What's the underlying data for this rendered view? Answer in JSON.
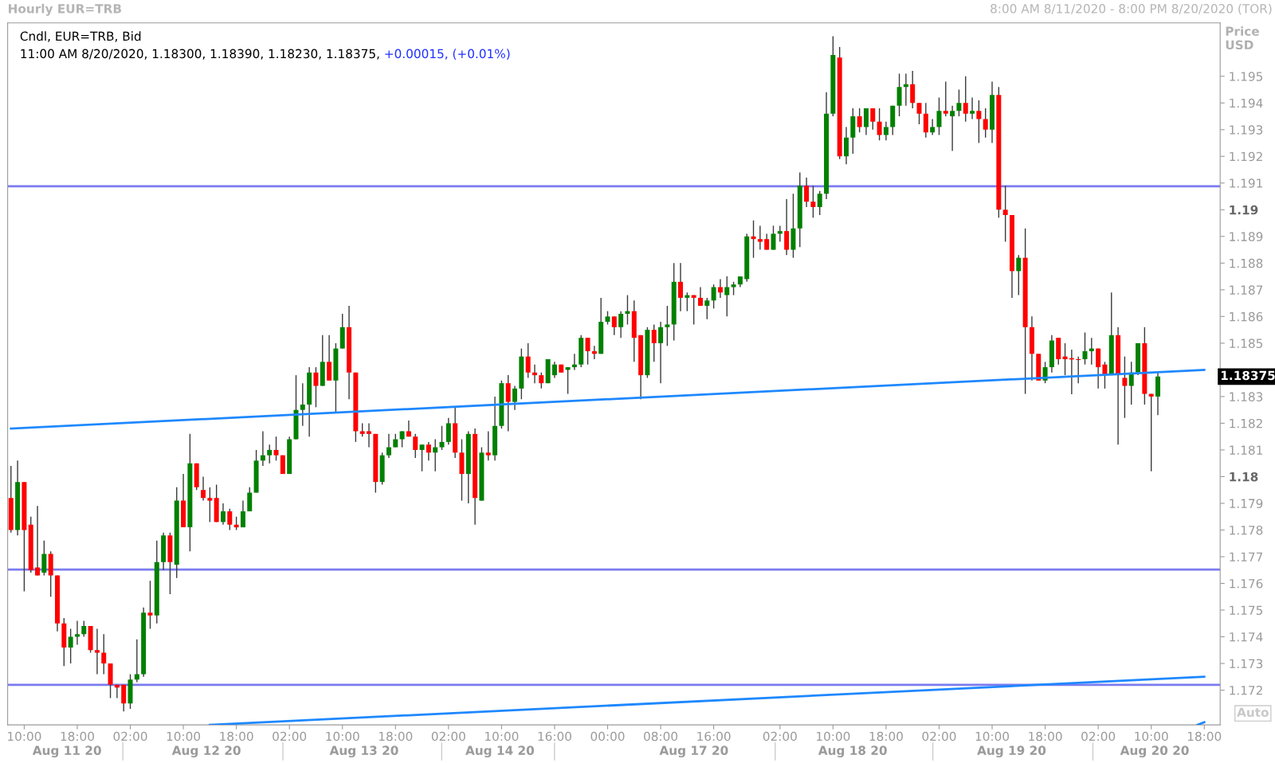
{
  "chart_data": {
    "type": "candlestick",
    "title": "Hourly EUR=TRB",
    "subtitle": "8:00 AM 8/11/2020 - 8:00 PM 8/20/2020 (TOR)",
    "ylabel": "Price\nUSD",
    "annotations": [
      "Cndl, EUR=TRB, Bid",
      "11:00 AM 8/20/2020, 1.18300, 1.18390, 1.18230, 1.18375,",
      "+0.00015, (+0.01%)",
      "Auto",
      "1.18375",
      "Aug 11 20",
      "Aug 12 20",
      "Aug 13 20",
      "Aug 14 20",
      "Aug 17 20",
      "Aug 18 20",
      "Aug 19 20",
      "Aug 20 20"
    ],
    "categories": [
      null,
      null,
      "10:00",
      null,
      null,
      null,
      null,
      null,
      null,
      null,
      "18:00",
      null,
      null,
      null,
      null,
      null,
      null,
      null,
      "02:00",
      null,
      null,
      null,
      null,
      null,
      null,
      null,
      "10:00",
      null,
      null,
      null,
      null,
      null,
      null,
      null,
      "18:00",
      null,
      null,
      null,
      null,
      null,
      null,
      null,
      "02:00",
      null,
      null,
      null,
      null,
      null,
      null,
      null,
      "10:00",
      null,
      null,
      null,
      null,
      null,
      null,
      null,
      "18:00",
      null,
      null,
      null,
      null,
      null,
      null,
      null,
      "02:00",
      null,
      null,
      null,
      null,
      null,
      null,
      null,
      "10:00",
      null,
      null,
      null,
      null,
      null,
      null,
      null,
      "16:00",
      null,
      null,
      null,
      null,
      null,
      null,
      null,
      "00:00",
      null,
      null,
      null,
      null,
      null,
      null,
      null,
      "08:00",
      null,
      null,
      null,
      null,
      null,
      null,
      null,
      "16:00",
      null,
      null,
      null,
      null,
      null,
      null,
      null,
      null,
      null,
      "02:00",
      null,
      null,
      null,
      null,
      null,
      null,
      null,
      "10:00",
      null,
      null,
      null,
      null,
      null,
      null,
      null,
      "18:00",
      null,
      null,
      null,
      null,
      null,
      null,
      null,
      "02:00",
      null,
      null,
      null,
      null,
      null,
      null,
      null,
      "10:00",
      null,
      null,
      null,
      null,
      null,
      null,
      null,
      "18:00",
      null,
      null,
      null,
      null,
      null,
      null,
      null,
      "02:00",
      null,
      null,
      null,
      null,
      null,
      null,
      null,
      "10:00",
      null,
      null,
      null,
      null,
      null,
      null,
      null,
      "18:00"
    ],
    "ohlc": [
      [
        1.1792,
        1.1804,
        1.1779,
        1.178
      ],
      [
        1.178,
        1.1806,
        1.1778,
        1.1798
      ],
      [
        1.1798,
        1.1798,
        1.1757,
        1.178
      ],
      [
        1.1782,
        1.1785,
        1.1764,
        1.1765
      ],
      [
        1.1766,
        1.1789,
        1.1763,
        1.1763
      ],
      [
        1.1764,
        1.1776,
        1.1763,
        1.1771
      ],
      [
        1.1771,
        1.1772,
        1.1755,
        1.1763
      ],
      [
        1.1763,
        1.1763,
        1.1742,
        1.1745
      ],
      [
        1.1745,
        1.1747,
        1.1729,
        1.1736
      ],
      [
        1.1736,
        1.1743,
        1.173,
        1.174
      ],
      [
        1.174,
        1.1746,
        1.1737,
        1.1741
      ],
      [
        1.1741,
        1.1746,
        1.174,
        1.1744
      ],
      [
        1.1744,
        1.1744,
        1.1734,
        1.1735
      ],
      [
        1.1735,
        1.1743,
        1.1726,
        1.1734
      ],
      [
        1.1734,
        1.1741,
        1.1726,
        1.173
      ],
      [
        1.173,
        1.173,
        1.1717,
        1.1722
      ],
      [
        1.1722,
        1.1722,
        1.1717,
        1.1721
      ],
      [
        1.1722,
        1.1722,
        1.1712,
        1.1715
      ],
      [
        1.1715,
        1.1726,
        1.1713,
        1.1724
      ],
      [
        1.1724,
        1.1739,
        1.1723,
        1.1726
      ],
      [
        1.1726,
        1.1751,
        1.1725,
        1.1749
      ],
      [
        1.1749,
        1.1761,
        1.1743,
        1.1748
      ],
      [
        1.1748,
        1.1776,
        1.1745,
        1.1768
      ],
      [
        1.1768,
        1.1779,
        1.1765,
        1.1778
      ],
      [
        1.1778,
        1.1779,
        1.1756,
        1.1768
      ],
      [
        1.1767,
        1.1796,
        1.1762,
        1.1791
      ],
      [
        1.1791,
        1.1801,
        1.1781,
        1.1781
      ],
      [
        1.1781,
        1.1816,
        1.1772,
        1.1805
      ],
      [
        1.1805,
        1.1805,
        1.1795,
        1.1796
      ],
      [
        1.1795,
        1.18,
        1.1791,
        1.1792
      ],
      [
        1.1792,
        1.1796,
        1.1783,
        1.1791
      ],
      [
        1.1792,
        1.1797,
        1.1783,
        1.1783
      ],
      [
        1.1783,
        1.179,
        1.1782,
        1.1787
      ],
      [
        1.1787,
        1.1788,
        1.178,
        1.1782
      ],
      [
        1.1782,
        1.1785,
        1.178,
        1.1781
      ],
      [
        1.1781,
        1.1791,
        1.1781,
        1.1787
      ],
      [
        1.1787,
        1.1796,
        1.1787,
        1.1794
      ],
      [
        1.1794,
        1.181,
        1.1794,
        1.1806
      ],
      [
        1.1806,
        1.1817,
        1.1804,
        1.1808
      ],
      [
        1.1808,
        1.1812,
        1.1805,
        1.181
      ],
      [
        1.181,
        1.1815,
        1.1806,
        1.1808
      ],
      [
        1.1808,
        1.1808,
        1.1801,
        1.1801
      ],
      [
        1.1801,
        1.1815,
        1.1801,
        1.1814
      ],
      [
        1.1814,
        1.1838,
        1.1814,
        1.1825
      ],
      [
        1.1825,
        1.1835,
        1.1819,
        1.1827
      ],
      [
        1.1827,
        1.1841,
        1.1815,
        1.1839
      ],
      [
        1.1839,
        1.1841,
        1.1826,
        1.1834
      ],
      [
        1.1834,
        1.1853,
        1.1834,
        1.1843
      ],
      [
        1.1843,
        1.1853,
        1.1836,
        1.1836
      ],
      [
        1.1836,
        1.185,
        1.1824,
        1.1848
      ],
      [
        1.1848,
        1.1861,
        1.1848,
        1.1856
      ],
      [
        1.1856,
        1.1864,
        1.1829,
        1.1839
      ],
      [
        1.1839,
        1.1839,
        1.1813,
        1.1817
      ],
      [
        1.1817,
        1.182,
        1.1815,
        1.1816
      ],
      [
        1.1817,
        1.182,
        1.1811,
        1.1816
      ],
      [
        1.1816,
        1.1816,
        1.1794,
        1.1798
      ],
      [
        1.1798,
        1.1809,
        1.1797,
        1.1808
      ],
      [
        1.1808,
        1.1816,
        1.1807,
        1.1811
      ],
      [
        1.1811,
        1.1816,
        1.1811,
        1.1814
      ],
      [
        1.1814,
        1.1817,
        1.1811,
        1.1817
      ],
      [
        1.1817,
        1.1821,
        1.1815,
        1.1815
      ],
      [
        1.1815,
        1.1816,
        1.1807,
        1.181
      ],
      [
        1.181,
        1.1812,
        1.1802,
        1.1812
      ],
      [
        1.1812,
        1.1813,
        1.1806,
        1.1809
      ],
      [
        1.1809,
        1.1814,
        1.1802,
        1.1811
      ],
      [
        1.1811,
        1.1819,
        1.181,
        1.1813
      ],
      [
        1.1813,
        1.1822,
        1.1812,
        1.182
      ],
      [
        1.182,
        1.1826,
        1.1807,
        1.1809
      ],
      [
        1.1809,
        1.1814,
        1.1791,
        1.1801
      ],
      [
        1.1801,
        1.1817,
        1.179,
        1.1816
      ],
      [
        1.1816,
        1.1818,
        1.1782,
        1.1792
      ],
      [
        1.1791,
        1.1811,
        1.1791,
        1.1809
      ],
      [
        1.1809,
        1.1817,
        1.1806,
        1.1808
      ],
      [
        1.1808,
        1.183,
        1.1806,
        1.1819
      ],
      [
        1.1819,
        1.1836,
        1.1818,
        1.1835
      ],
      [
        1.1835,
        1.1838,
        1.1817,
        1.1828
      ],
      [
        1.1828,
        1.1834,
        1.1825,
        1.1833
      ],
      [
        1.1833,
        1.1848,
        1.1829,
        1.1845
      ],
      [
        1.1845,
        1.185,
        1.1837,
        1.1839
      ],
      [
        1.1839,
        1.1842,
        1.1835,
        1.1838
      ],
      [
        1.1838,
        1.1839,
        1.1833,
        1.1835
      ],
      [
        1.1835,
        1.1844,
        1.1835,
        1.1844
      ],
      [
        1.1838,
        1.1843,
        1.1837,
        1.1842
      ],
      [
        1.1842,
        1.1842,
        1.1839,
        1.1839
      ],
      [
        1.184,
        1.1841,
        1.1831,
        1.1841
      ],
      [
        1.1841,
        1.1846,
        1.184,
        1.1842
      ],
      [
        1.1842,
        1.1853,
        1.1841,
        1.1852
      ],
      [
        1.1852,
        1.1852,
        1.1842,
        1.1847
      ],
      [
        1.1847,
        1.1849,
        1.1844,
        1.1846
      ],
      [
        1.1846,
        1.1867,
        1.1846,
        1.1858
      ],
      [
        1.1858,
        1.1862,
        1.1857,
        1.186
      ],
      [
        1.186,
        1.186,
        1.1853,
        1.1856
      ],
      [
        1.1856,
        1.1862,
        1.1852,
        1.1861
      ],
      [
        1.1861,
        1.1868,
        1.1857,
        1.1862
      ],
      [
        1.1862,
        1.1866,
        1.1843,
        1.1852
      ],
      [
        1.1853,
        1.1853,
        1.1829,
        1.1838
      ],
      [
        1.1838,
        1.1856,
        1.1837,
        1.1855
      ],
      [
        1.1855,
        1.1857,
        1.1843,
        1.185
      ],
      [
        1.185,
        1.1858,
        1.1835,
        1.1856
      ],
      [
        1.1856,
        1.1864,
        1.1849,
        1.1857
      ],
      [
        1.1857,
        1.188,
        1.1851,
        1.1873
      ],
      [
        1.1873,
        1.188,
        1.1862,
        1.1867
      ],
      [
        1.1867,
        1.1869,
        1.1862,
        1.1868
      ],
      [
        1.1868,
        1.1868,
        1.1857,
        1.1867
      ],
      [
        1.1867,
        1.1871,
        1.1864,
        1.1864
      ],
      [
        1.1864,
        1.1867,
        1.1859,
        1.1866
      ],
      [
        1.1866,
        1.1872,
        1.1863,
        1.1871
      ],
      [
        1.1871,
        1.1874,
        1.1867,
        1.1869
      ],
      [
        1.1868,
        1.1875,
        1.186,
        1.1871
      ],
      [
        1.1871,
        1.1873,
        1.1868,
        1.1872
      ],
      [
        1.1872,
        1.1875,
        1.1871,
        1.1875
      ],
      [
        1.1874,
        1.1891,
        1.1873,
        1.189
      ],
      [
        1.189,
        1.1896,
        1.1882,
        1.1889
      ],
      [
        1.1889,
        1.1894,
        1.1885,
        1.1888
      ],
      [
        1.1889,
        1.1891,
        1.1885,
        1.1885
      ],
      [
        1.1885,
        1.1894,
        1.1885,
        1.1891
      ],
      [
        1.1891,
        1.1894,
        1.1888,
        1.1892
      ],
      [
        1.1892,
        1.1904,
        1.1883,
        1.1885
      ],
      [
        1.1885,
        1.1906,
        1.1882,
        1.1893
      ],
      [
        1.1893,
        1.1914,
        1.1886,
        1.1909
      ],
      [
        1.1909,
        1.1912,
        1.1901,
        1.1903
      ],
      [
        1.1903,
        1.1909,
        1.1897,
        1.1901
      ],
      [
        1.1901,
        1.1907,
        1.1898,
        1.1906
      ],
      [
        1.1906,
        1.1944,
        1.1904,
        1.1936
      ],
      [
        1.1936,
        1.1965,
        1.1935,
        1.1958
      ],
      [
        1.1957,
        1.1961,
        1.1919,
        1.192
      ],
      [
        1.192,
        1.1931,
        1.1917,
        1.1927
      ],
      [
        1.1927,
        1.1938,
        1.1921,
        1.1935
      ],
      [
        1.1935,
        1.1938,
        1.1929,
        1.1931
      ],
      [
        1.1931,
        1.1938,
        1.1928,
        1.1938
      ],
      [
        1.1938,
        1.1938,
        1.193,
        1.1933
      ],
      [
        1.1933,
        1.1938,
        1.1926,
        1.1928
      ],
      [
        1.1928,
        1.1933,
        1.1926,
        1.1931
      ],
      [
        1.1931,
        1.1939,
        1.1928,
        1.1939
      ],
      [
        1.1939,
        1.1951,
        1.1935,
        1.1946
      ],
      [
        1.1946,
        1.1951,
        1.1939,
        1.1947
      ],
      [
        1.1947,
        1.1952,
        1.1938,
        1.194
      ],
      [
        1.194,
        1.194,
        1.1932,
        1.1936
      ],
      [
        1.1936,
        1.194,
        1.1927,
        1.1929
      ],
      [
        1.1929,
        1.1934,
        1.1928,
        1.1931
      ],
      [
        1.1931,
        1.1942,
        1.1928,
        1.1937
      ],
      [
        1.1937,
        1.1948,
        1.1935,
        1.1936
      ],
      [
        1.1935,
        1.1939,
        1.1922,
        1.1937
      ],
      [
        1.1937,
        1.1945,
        1.1935,
        1.194
      ],
      [
        1.194,
        1.195,
        1.1933,
        1.1936
      ],
      [
        1.1936,
        1.1942,
        1.1934,
        1.1937
      ],
      [
        1.1937,
        1.1941,
        1.1925,
        1.1934
      ],
      [
        1.1934,
        1.1938,
        1.1927,
        1.193
      ],
      [
        1.193,
        1.1948,
        1.1925,
        1.1943
      ],
      [
        1.1943,
        1.1946,
        1.1897,
        1.19
      ],
      [
        1.19,
        1.1909,
        1.1888,
        1.1898
      ],
      [
        1.1898,
        1.1898,
        1.1867,
        1.1877
      ],
      [
        1.1877,
        1.1883,
        1.1868,
        1.1882
      ],
      [
        1.1882,
        1.1893,
        1.1831,
        1.1856
      ],
      [
        1.1856,
        1.186,
        1.1836,
        1.1846
      ],
      [
        1.1846,
        1.1846,
        1.1836,
        1.1836
      ],
      [
        1.1836,
        1.1843,
        1.1835,
        1.1841
      ],
      [
        1.1841,
        1.1853,
        1.1839,
        1.1851
      ],
      [
        1.1852,
        1.1852,
        1.1842,
        1.1844
      ],
      [
        1.1845,
        1.185,
        1.1838,
        1.1844
      ],
      [
        1.18444,
        1.18476,
        1.18309,
        1.18439
      ],
      [
        1.1844,
        1.1845,
        1.1835,
        1.18437
      ],
      [
        1.1844,
        1.1854,
        1.1842,
        1.1847
      ],
      [
        1.1847,
        1.1852,
        1.1842,
        1.1848
      ],
      [
        1.1848,
        1.1848,
        1.1833,
        1.1841
      ],
      [
        1.1842,
        1.1843,
        1.1833,
        1.1838
      ],
      [
        1.1838,
        1.1869,
        1.1838,
        1.1853
      ],
      [
        1.1853,
        1.1856,
        1.1812,
        1.1838
      ],
      [
        1.1837,
        1.1845,
        1.1822,
        1.1834
      ],
      [
        1.1834,
        1.1843,
        1.1827,
        1.1839
      ],
      [
        1.1839,
        1.185,
        1.1838,
        1.185
      ],
      [
        1.185,
        1.1856,
        1.1827,
        1.1831
      ],
      [
        1.1831,
        1.1831,
        1.1802,
        1.183
      ],
      [
        1.183,
        1.1839,
        1.1823,
        1.18375
      ],
      null,
      null,
      null,
      null,
      null,
      null,
      null
    ],
    "series": [
      {
        "type": "line",
        "color": "#1e88ff",
        "values": [
          1.1818,
          null,
          null,
          null,
          null,
          null,
          null,
          null,
          null,
          null,
          null,
          null,
          null,
          null,
          null,
          null,
          null,
          null,
          null,
          null,
          null,
          null,
          null,
          null,
          null,
          null,
          null,
          null,
          null,
          null,
          null,
          null,
          null,
          null,
          null,
          null,
          null,
          null,
          null,
          null,
          null,
          null,
          null,
          null,
          null,
          null,
          null,
          null,
          null,
          null,
          null,
          null,
          null,
          null,
          null,
          null,
          null,
          null,
          null,
          null,
          null,
          null,
          null,
          null,
          null,
          null,
          null,
          null,
          null,
          null,
          null,
          null,
          null,
          null,
          null,
          null,
          null,
          null,
          null,
          null,
          null,
          null,
          null,
          null,
          null,
          null,
          null,
          null,
          null,
          null,
          null,
          null,
          null,
          null,
          null,
          null,
          null,
          null,
          null,
          null,
          null,
          null,
          null,
          null,
          null,
          null,
          null,
          null,
          null,
          null,
          null,
          null,
          null,
          null,
          null,
          null,
          null,
          null,
          null,
          null,
          null,
          null,
          null,
          null,
          null,
          null,
          null,
          null,
          null,
          null,
          null,
          null,
          null,
          null,
          null,
          null,
          null,
          null,
          null,
          null,
          null,
          null,
          null,
          null,
          null,
          null,
          null,
          null,
          null,
          null,
          null,
          null,
          null,
          null,
          null,
          null,
          null,
          null,
          null,
          null,
          null,
          null,
          null,
          null,
          null,
          null,
          null,
          null,
          null,
          null,
          null,
          null,
          null,
          null,
          null,
          null,
          null,
          null,
          null,
          null,
          1.184
        ]
      },
      {
        "type": "line",
        "color": "#1e88ff",
        "values": [
          null,
          null,
          null,
          null,
          null,
          null,
          null,
          null,
          null,
          null,
          null,
          null,
          null,
          null,
          null,
          null,
          null,
          null,
          null,
          null,
          null,
          null,
          null,
          null,
          null,
          null,
          null,
          null,
          null,
          null,
          1.1707,
          null,
          null,
          null,
          null,
          null,
          null,
          null,
          null,
          null,
          null,
          null,
          null,
          null,
          null,
          null,
          null,
          null,
          null,
          null,
          null,
          null,
          null,
          null,
          null,
          null,
          null,
          null,
          null,
          null,
          null,
          null,
          null,
          null,
          null,
          null,
          null,
          null,
          null,
          null,
          null,
          null,
          null,
          null,
          null,
          null,
          null,
          null,
          null,
          null,
          null,
          null,
          null,
          null,
          null,
          null,
          null,
          null,
          null,
          null,
          null,
          null,
          null,
          null,
          null,
          null,
          null,
          null,
          null,
          null,
          null,
          null,
          null,
          null,
          null,
          null,
          null,
          null,
          null,
          null,
          null,
          null,
          null,
          null,
          null,
          null,
          null,
          null,
          null,
          null,
          null,
          null,
          null,
          null,
          null,
          null,
          null,
          null,
          null,
          null,
          null,
          null,
          null,
          null,
          null,
          null,
          null,
          null,
          null,
          null,
          null,
          null,
          null,
          null,
          null,
          null,
          null,
          null,
          null,
          null,
          null,
          null,
          null,
          null,
          null,
          null,
          null,
          null,
          null,
          null,
          null,
          null,
          null,
          null,
          null,
          null,
          null,
          null,
          null,
          null,
          null,
          null,
          null,
          null,
          null,
          null,
          null,
          null,
          null,
          null,
          1.1725
        ]
      },
      {
        "type": "line",
        "color": "#1e88ff",
        "values": [
          null,
          null,
          null,
          null,
          null,
          null,
          null,
          null,
          null,
          null,
          null,
          null,
          null,
          null,
          null,
          null,
          null,
          null,
          null,
          null,
          null,
          null,
          null,
          null,
          null,
          null,
          null,
          null,
          null,
          null,
          null,
          null,
          null,
          null,
          null,
          null,
          null,
          null,
          null,
          null,
          null,
          null,
          null,
          null,
          null,
          null,
          null,
          null,
          null,
          null,
          null,
          null,
          null,
          null,
          null,
          null,
          null,
          null,
          null,
          null,
          null,
          null,
          null,
          null,
          null,
          null,
          null,
          null,
          null,
          null,
          null,
          null,
          null,
          null,
          null,
          null,
          null,
          null,
          null,
          null,
          null,
          null,
          null,
          null,
          null,
          null,
          null,
          null,
          null,
          null,
          null,
          null,
          null,
          null,
          null,
          null,
          null,
          null,
          null,
          null,
          null,
          null,
          null,
          null,
          null,
          null,
          null,
          null,
          null,
          null,
          null,
          null,
          null,
          null,
          null,
          null,
          null,
          null,
          null,
          null,
          null,
          null,
          null,
          null,
          null,
          null,
          null,
          null,
          null,
          null,
          null,
          null,
          null,
          null,
          null,
          null,
          null,
          null,
          null,
          null,
          null,
          null,
          null,
          null,
          null,
          null,
          null,
          null,
          null,
          null,
          null,
          null,
          null,
          null,
          null,
          null,
          null,
          null,
          null,
          null,
          null,
          null,
          null,
          null,
          null,
          null,
          null,
          null,
          null,
          null,
          null,
          null,
          null,
          null,
          null,
          null,
          null,
          null,
          null,
          1.1707,
          1.1708
        ]
      }
    ],
    "ref_lines": [
      {
        "axis": "y",
        "value": 1.19088,
        "color": "#7b7bf0"
      },
      {
        "axis": "y",
        "value": 1.17652,
        "color": "#7b7bf0"
      },
      {
        "axis": "y",
        "value": 1.1722,
        "color": "#7b7bf0"
      }
    ],
    "ylim": [
      1.1707,
      1.197
    ],
    "yticks": [
      1.172,
      1.173,
      1.174,
      1.175,
      1.176,
      1.177,
      1.178,
      1.179,
      1.18,
      1.181,
      1.182,
      1.183,
      1.185,
      1.186,
      1.187,
      1.188,
      1.189,
      1.19,
      1.191,
      1.192,
      1.193,
      1.194,
      1.195
    ],
    "grid": false,
    "legend": false
  }
}
